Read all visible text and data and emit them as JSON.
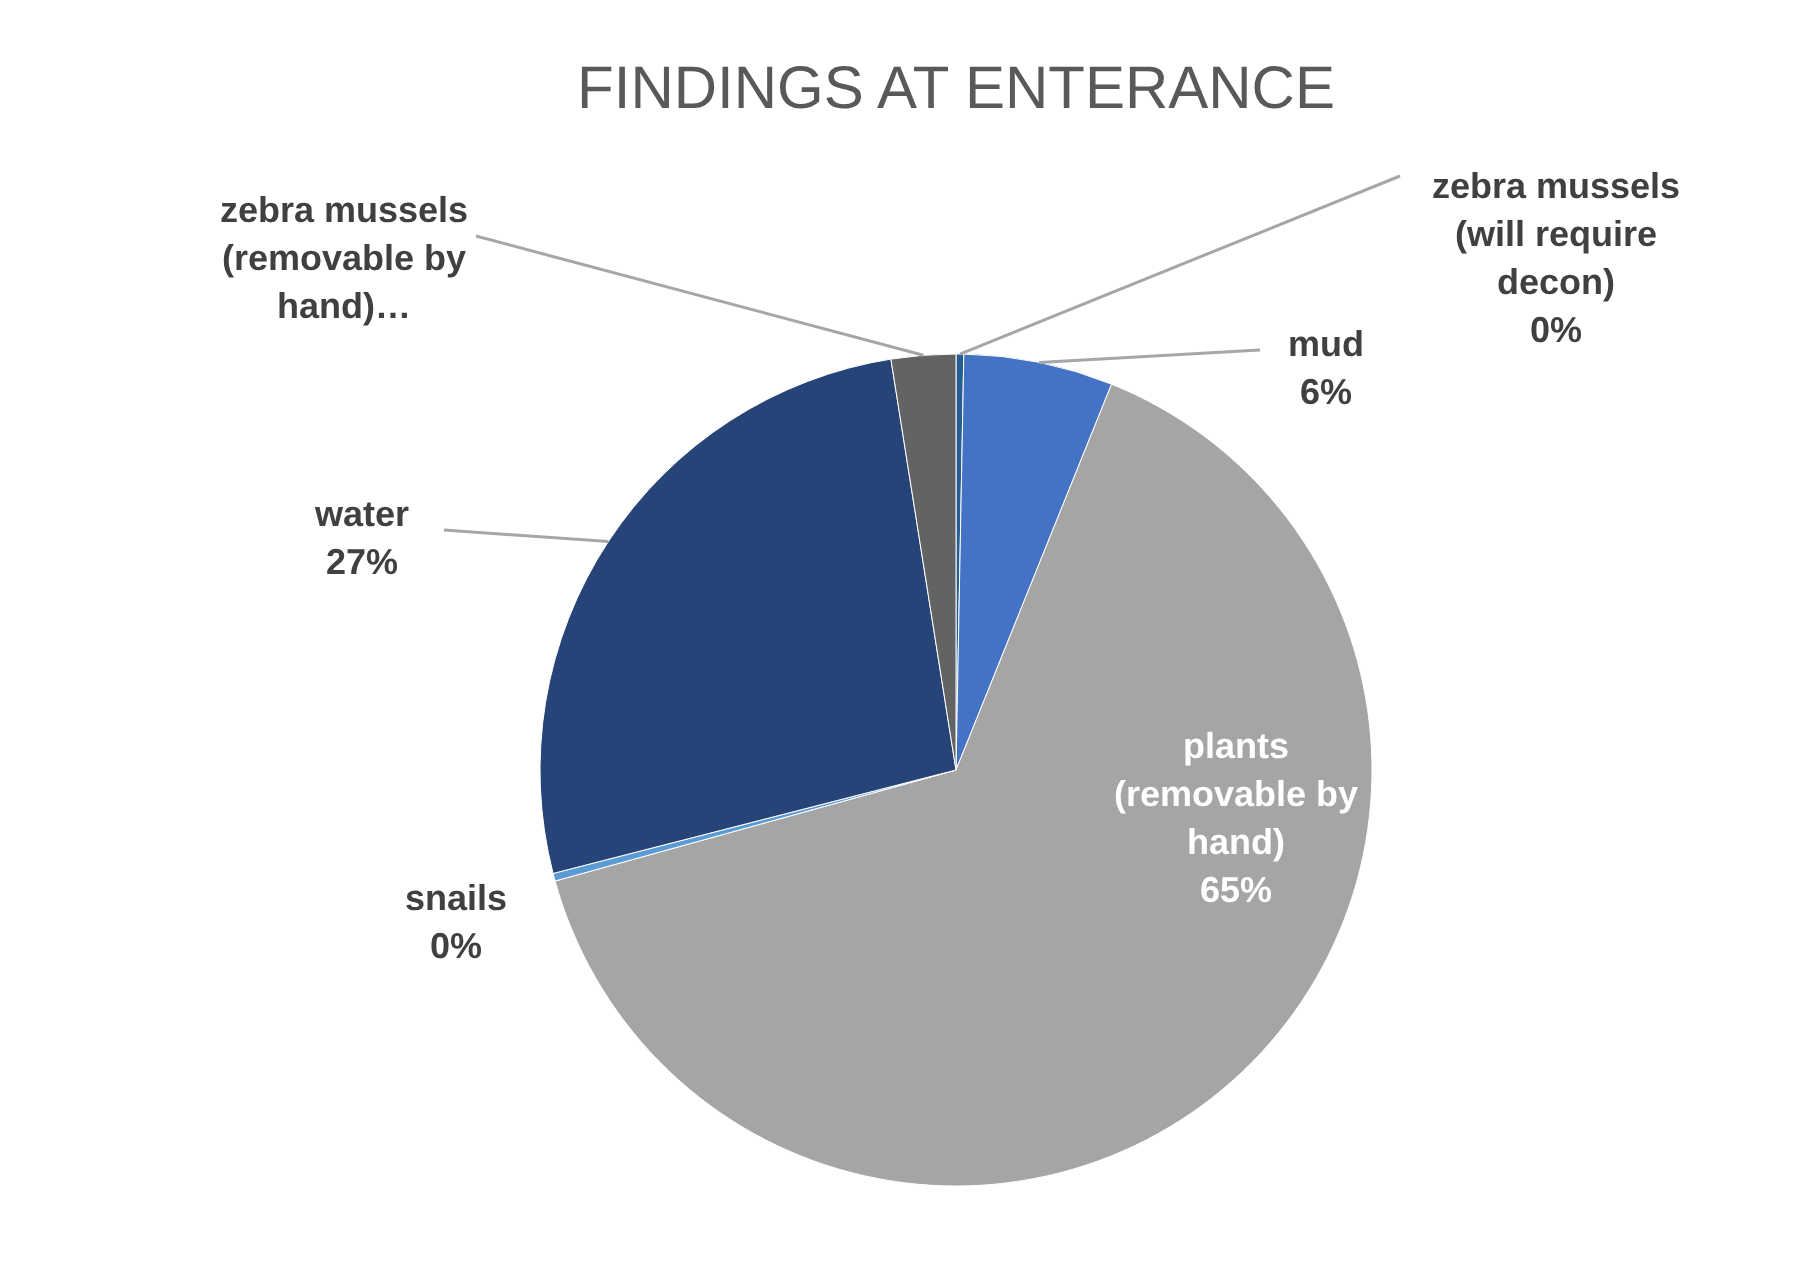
{
  "chart_data": {
    "type": "pie",
    "title": "FINDINGS AT ENTERANCE",
    "categories": [
      "zebra mussels (will require decon)",
      "mud",
      "plants (removable by hand)",
      "snails",
      "water",
      "zebra mussels (removable by hand)…"
    ],
    "values": [
      0.3,
      5.8,
      64.6,
      0.3,
      26.5,
      2.5
    ],
    "colors": [
      "#255e91",
      "#4472c4",
      "#a5a5a5",
      "#5b9bd5",
      "#264478",
      "#636363"
    ],
    "value_labels": [
      "0%",
      "6%",
      "65%",
      "0%",
      "27%",
      null
    ]
  }
}
